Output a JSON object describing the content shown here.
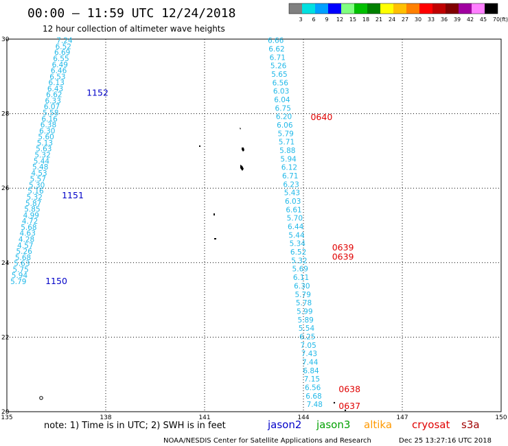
{
  "header": {
    "title": "00:00 – 11:59 UTC 12/24/2018",
    "subtitle": "12 hour collection of altimeter wave heights"
  },
  "colorbar": {
    "labels": [
      "3",
      "6",
      "9",
      "12",
      "15",
      "18",
      "21",
      "24",
      "27",
      "30",
      "33",
      "36",
      "39",
      "42",
      "45",
      "70"
    ],
    "unit": "(ft)",
    "colors": [
      "#808080",
      "#00e0e0",
      "#00a0ff",
      "#0000ff",
      "#80ff80",
      "#00c000",
      "#008000",
      "#ffff00",
      "#ffc000",
      "#ff8000",
      "#ff0000",
      "#c00000",
      "#800000",
      "#a000a0",
      "#ff80ff",
      "#000000"
    ]
  },
  "footer": {
    "note": "note:  1) Time is in UTC;  2) SWH is in feet",
    "credit": "NOAA/NESDIS Center for Satellite Applications and Research",
    "timestamp": "Dec 25 13:27:16 UTC 2018",
    "legend": [
      {
        "name": "jason2",
        "color": "#0000c8"
      },
      {
        "name": "jason3",
        "color": "#00a000"
      },
      {
        "name": "altika",
        "color": "#ff9900"
      },
      {
        "name": "cryosat",
        "color": "#e00000"
      },
      {
        "name": "s3a",
        "color": "#a00000"
      }
    ]
  },
  "chart_data": {
    "type": "scatter",
    "title": "12 hour collection of altimeter wave heights",
    "xlim": [
      135,
      150
    ],
    "ylim": [
      20,
      30
    ],
    "x_ticks": [
      "135",
      "138",
      "141",
      "144",
      "147",
      "150"
    ],
    "y_ticks": [
      "20",
      "22",
      "24",
      "26",
      "28",
      "30"
    ],
    "grid": true,
    "value_color": "#20b8e8",
    "tracks": [
      {
        "name": "track-1150-1152",
        "x_start": 135.35,
        "y_start": 23.5,
        "x_end": 136.75,
        "y_end": 29.97,
        "values": [
          "5.79",
          "5.94",
          "5.75",
          "5.63",
          "5.68",
          "5.26",
          "4.57",
          "4.28",
          "4.63",
          "5.68",
          "4.72",
          "4.99",
          "5.85",
          "5.87",
          "5.32",
          "5.16",
          "5.30",
          "5.57",
          "4.53",
          "5.48",
          "5.44",
          "5.32",
          "5.63",
          "5.13",
          "5.60",
          "6.30",
          "6.38",
          "6.16",
          "5.58",
          "6.07",
          "6.33",
          "6.62",
          "6.43",
          "6.13",
          "6.53",
          "6.46",
          "6.49",
          "6.55",
          "6.69",
          "6.52",
          "7.24"
        ]
      },
      {
        "name": "track-0637-0640",
        "x_start": 144.34,
        "y_start": 20.2,
        "x_end": 143.16,
        "y_end": 29.97,
        "values": [
          "7.48",
          "6.68",
          "6.56",
          "7.15",
          "6.84",
          "7.44",
          "7.43",
          "7.05",
          "6.25",
          "5.54",
          "5.89",
          "5.99",
          "5.78",
          "5.79",
          "6.30",
          "6.11",
          "5.69",
          "5.32",
          "6.52",
          "5.34",
          "5.44",
          "6.44",
          "5.70",
          "6.61",
          "6.03",
          "5.43",
          "6.23",
          "6.71",
          "6.12",
          "5.94",
          "5.88",
          "5.71",
          "5.79",
          "6.06",
          "6.20",
          "6.75",
          "6.04",
          "6.03",
          "6.56",
          "5.65",
          "5.26",
          "6.71",
          "6.62",
          "6.66"
        ]
      }
    ],
    "pass_labels": [
      {
        "text": "1150",
        "x": 136.5,
        "y": 23.5,
        "color": "#0000c8"
      },
      {
        "text": "1151",
        "x": 137.0,
        "y": 25.8,
        "color": "#0000c8"
      },
      {
        "text": "1152",
        "x": 137.75,
        "y": 28.55,
        "color": "#0000c8"
      },
      {
        "text": "0640",
        "x": 144.55,
        "y": 27.9,
        "color": "#e00000"
      },
      {
        "text": "0639",
        "x": 145.2,
        "y": 24.4,
        "color": "#e00000"
      },
      {
        "text": "0639",
        "x": 145.2,
        "y": 24.15,
        "color": "#e00000"
      },
      {
        "text": "0638",
        "x": 145.4,
        "y": 20.6,
        "color": "#e00000"
      },
      {
        "text": "0637",
        "x": 145.4,
        "y": 20.15,
        "color": "#e00000"
      }
    ]
  }
}
